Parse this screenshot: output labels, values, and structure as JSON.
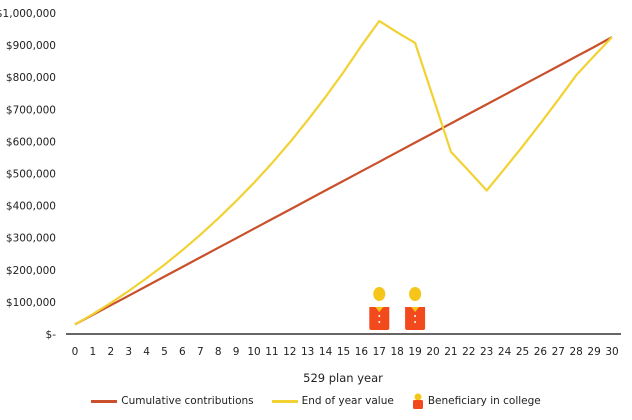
{
  "chart_data": {
    "type": "line",
    "title": "",
    "xlabel": "529 plan year",
    "ylabel": "",
    "ylim": [
      0,
      1000000
    ],
    "grid": false,
    "legend_position": "bottom",
    "x": [
      0,
      1,
      2,
      3,
      4,
      5,
      6,
      7,
      8,
      9,
      10,
      11,
      12,
      13,
      14,
      15,
      16,
      17,
      18,
      19,
      20,
      21,
      22,
      23,
      24,
      25,
      26,
      27,
      28,
      29,
      30
    ],
    "y_ticks": [
      "$-",
      "$100,000",
      "$200,000",
      "$300,000",
      "$400,000",
      "$500,000",
      "$600,000",
      "$700,000",
      "$800,000",
      "$900,000",
      "$1,000,000"
    ],
    "series": [
      {
        "name": "Cumulative contributions",
        "color": "#C9502B",
        "values": [
          30000,
          59800,
          89600,
          119400,
          149200,
          179000,
          208800,
          238600,
          268400,
          298200,
          328000,
          357800,
          387600,
          417400,
          447200,
          477000,
          506800,
          536600,
          566400,
          596200,
          626000,
          655800,
          685600,
          715400,
          745200,
          775000,
          804800,
          834600,
          864400,
          894200,
          925000
        ]
      },
      {
        "name": "End of year value",
        "color": "#F2D233",
        "values": [
          30000,
          62000,
          97000,
          134000,
          174000,
          216000,
          261000,
          309000,
          360000,
          414000,
          471000,
          532000,
          597000,
          666000,
          739000,
          816000,
          898000,
          975000,
          940000,
          907000,
          738000,
          568000,
          508000,
          447000,
          515000,
          584000,
          656000,
          730000,
          806000,
          866000,
          925000
        ]
      }
    ],
    "annotations": [
      {
        "type": "beneficiary-icon",
        "x": 17,
        "label": "Beneficiary in college"
      },
      {
        "type": "beneficiary-icon",
        "x": 19,
        "label": "Beneficiary in college"
      }
    ]
  },
  "legend": {
    "items": [
      {
        "label": "Cumulative contributions",
        "color": "#C9502B"
      },
      {
        "label": "End of year value",
        "color": "#F2D233"
      },
      {
        "label": "Beneficiary in college",
        "color": "#F24A1C"
      }
    ]
  },
  "colors": {
    "person_body": "#F24A1C",
    "person_head": "#F5C518",
    "axis": "#333333"
  }
}
